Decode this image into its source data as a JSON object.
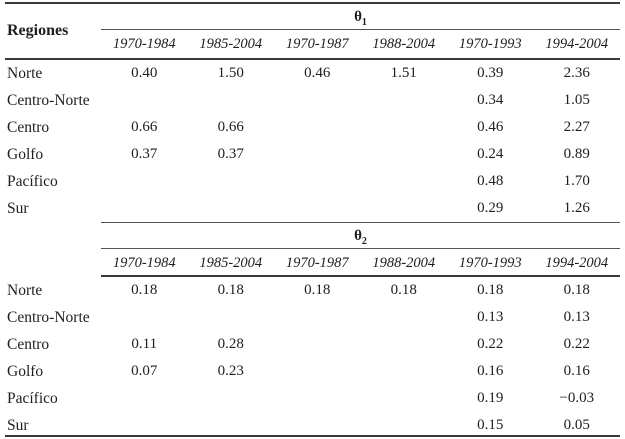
{
  "table": {
    "region_header": "Regiones",
    "sections": [
      {
        "title": "θ",
        "title_sub": "1",
        "periods": [
          "1970-1984",
          "1985-2004",
          "1970-1987",
          "1988-2004",
          "1970-1993",
          "1994-2004"
        ],
        "rows": [
          {
            "region": "Norte",
            "values": [
              "0.40",
              "1.50",
              "0.46",
              "1.51",
              "0.39",
              "2.36"
            ]
          },
          {
            "region": "Centro-Norte",
            "values": [
              "",
              "",
              "",
              "",
              "0.34",
              "1.05"
            ]
          },
          {
            "region": "Centro",
            "values": [
              "0.66",
              "0.66",
              "",
              "",
              "0.46",
              "2.27"
            ]
          },
          {
            "region": "Golfo",
            "values": [
              "0.37",
              "0.37",
              "",
              "",
              "0.24",
              "0.89"
            ]
          },
          {
            "region": "Pacífico",
            "values": [
              "",
              "",
              "",
              "",
              "0.48",
              "1.70"
            ]
          },
          {
            "region": "Sur",
            "values": [
              "",
              "",
              "",
              "",
              "0.29",
              "1.26"
            ]
          }
        ]
      },
      {
        "title": "θ",
        "title_sub": "2",
        "periods": [
          "1970-1984",
          "1985-2004",
          "1970-1987",
          "1988-2004",
          "1970-1993",
          "1994-2004"
        ],
        "rows": [
          {
            "region": "Norte",
            "values": [
              "0.18",
              "0.18",
              "0.18",
              "0.18",
              "0.18",
              "0.18"
            ]
          },
          {
            "region": "Centro-Norte",
            "values": [
              "",
              "",
              "",
              "",
              "0.13",
              "0.13"
            ]
          },
          {
            "region": "Centro",
            "values": [
              "0.11",
              "0.28",
              "",
              "",
              "0.22",
              "0.22"
            ]
          },
          {
            "region": "Golfo",
            "values": [
              "0.07",
              "0.23",
              "",
              "",
              "0.16",
              "0.16"
            ]
          },
          {
            "region": "Pacífico",
            "values": [
              "",
              "",
              "",
              "",
              "0.19",
              "−0.03"
            ]
          },
          {
            "region": "Sur",
            "values": [
              "",
              "",
              "",
              "",
              "0.15",
              "0.05"
            ]
          }
        ]
      }
    ]
  },
  "colors": {
    "text": "#1e1e1e",
    "rule_thick": "#3a3a3a",
    "rule_thin": "#555555",
    "background": "#ffffff"
  }
}
